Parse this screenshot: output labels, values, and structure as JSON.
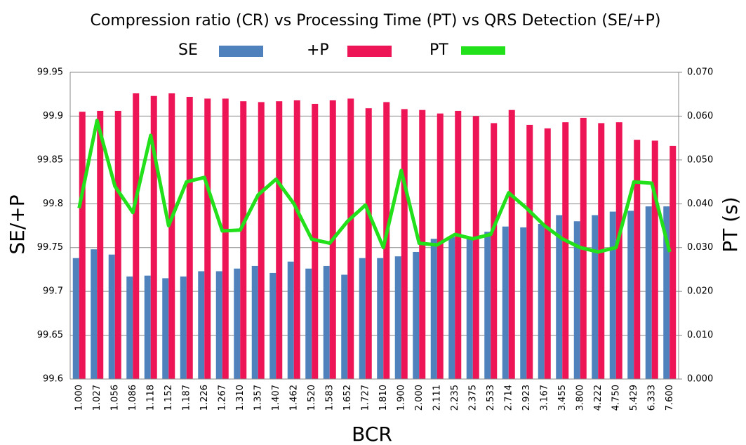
{
  "chart_data": {
    "type": "bar_line",
    "title": "Compression ratio (CR) vs Processing Time (PT) vs QRS Detection (SE/+P)",
    "xlabel": "BCR",
    "ylabel": "SE/+P",
    "y2label": "PT (s)",
    "categories": [
      "1.000",
      "1.027",
      "1.056",
      "1.086",
      "1.118",
      "1.152",
      "1.187",
      "1.226",
      "1.267",
      "1.310",
      "1.357",
      "1.407",
      "1.462",
      "1.520",
      "1.583",
      "1.652",
      "1.727",
      "1.810",
      "1.900",
      "2.000",
      "2.111",
      "2.235",
      "2.375",
      "2.533",
      "2.714",
      "2.923",
      "3.167",
      "3.455",
      "3.800",
      "4.222",
      "4.750",
      "5.429",
      "6.333",
      "7.600"
    ],
    "series": [
      {
        "name": "SE",
        "type": "bar",
        "color": "#4f81bd",
        "values": [
          99.738,
          99.748,
          99.742,
          99.717,
          99.718,
          99.715,
          99.717,
          99.723,
          99.723,
          99.726,
          99.729,
          99.721,
          99.734,
          99.726,
          99.729,
          99.719,
          99.738,
          99.738,
          99.74,
          99.745,
          99.76,
          99.762,
          99.762,
          99.768,
          99.774,
          99.773,
          99.777,
          99.787,
          99.78,
          99.787,
          99.791,
          99.792,
          99.797,
          99.797
        ]
      },
      {
        "name": "+P",
        "type": "bar",
        "color": "#ee1556",
        "values": [
          99.905,
          99.906,
          99.906,
          99.926,
          99.923,
          99.926,
          99.922,
          99.92,
          99.92,
          99.917,
          99.916,
          99.917,
          99.918,
          99.914,
          99.918,
          99.92,
          99.909,
          99.916,
          99.908,
          99.907,
          99.903,
          99.906,
          99.9,
          99.892,
          99.907,
          99.89,
          99.886,
          99.893,
          99.898,
          99.892,
          99.893,
          99.873,
          99.872,
          99.866
        ]
      },
      {
        "name": "PT",
        "type": "line",
        "axis": "y2",
        "color": "#22e01a",
        "values": [
          0.039,
          0.059,
          0.044,
          0.038,
          0.0556,
          0.035,
          0.045,
          0.046,
          0.0338,
          0.034,
          0.042,
          0.0456,
          0.04,
          0.0319,
          0.031,
          0.036,
          0.0397,
          0.03,
          0.0476,
          0.031,
          0.0306,
          0.033,
          0.032,
          0.033,
          0.0425,
          0.039,
          0.035,
          0.032,
          0.03,
          0.029,
          0.03,
          0.045,
          0.0447,
          0.029
        ]
      }
    ],
    "ylim": [
      99.6,
      99.95
    ],
    "yticks": [
      99.6,
      99.65,
      99.7,
      99.75,
      99.8,
      99.85,
      99.9,
      99.95
    ],
    "y2lim": [
      0,
      0.07
    ],
    "y2ticks": [
      {
        "value": 0,
        "label": "0.000"
      },
      {
        "value": 0.01,
        "label": "0.010"
      },
      {
        "value": 0.02,
        "label": "0.020"
      },
      {
        "value": 0.03,
        "label": "0.030"
      },
      {
        "value": 0.04,
        "label": "0.040"
      },
      {
        "value": 0.05,
        "label": "0.050"
      },
      {
        "value": 0.06,
        "label": "0.060"
      },
      {
        "value": 0.07,
        "label": "0.070"
      }
    ],
    "grid": true
  }
}
